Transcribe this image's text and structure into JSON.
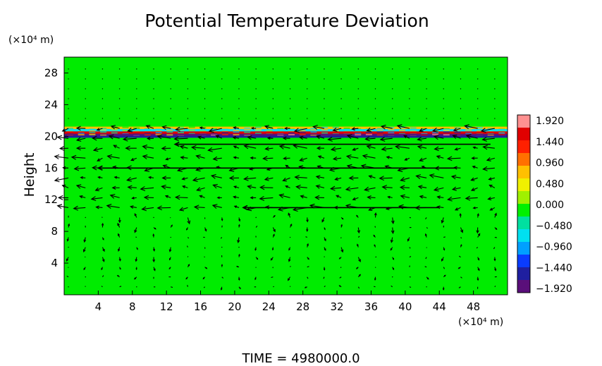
{
  "chart_data": {
    "type": "heatmap",
    "subtype": "filled-contour with wind vectors",
    "title": "Potential Temperature Deviation",
    "xlabel": "",
    "ylabel": "Height",
    "x_unit_label": "(×10⁴ m)",
    "y_unit_label": "(×10⁴ m)",
    "xlim": [
      0,
      52
    ],
    "ylim": [
      0,
      30
    ],
    "x_ticks": [
      4,
      8,
      12,
      16,
      20,
      24,
      28,
      32,
      36,
      40,
      44,
      48
    ],
    "y_ticks": [
      4,
      8,
      12,
      16,
      20,
      24,
      28
    ],
    "background_field_value": 0.0,
    "colorbar": {
      "range": [
        -1.92,
        1.92
      ],
      "tick_labels": [
        "1.920",
        "1.440",
        "0.960",
        "0.480",
        "0.000",
        "−0.480",
        "−0.960",
        "−1.440",
        "−1.920"
      ],
      "colors": [
        "#5a0f7a",
        "#1f1fa0",
        "#0a3cff",
        "#00a0ff",
        "#00e0f0",
        "#00e0a0",
        "#00f000",
        "#a0f000",
        "#f0f000",
        "#ffc000",
        "#ff7000",
        "#ff2000",
        "#e00000",
        "#ff9090"
      ]
    },
    "wave_band": {
      "y_center": 20.2,
      "description_values": [
        {
          "y": 21.0,
          "value": 0.6
        },
        {
          "y": 20.7,
          "value": -0.8
        },
        {
          "y": 20.4,
          "value": 1.5
        },
        {
          "y": 20.1,
          "value": -1.9
        }
      ]
    },
    "vector_jets": [
      {
        "y": 19.0,
        "x_from": 50,
        "x_to": 13,
        "direction": "westward"
      },
      {
        "y": 16.0,
        "x_from": 46,
        "x_to": 4,
        "direction": "westward"
      },
      {
        "y": 11.0,
        "x_from": 44,
        "x_to": 21,
        "direction": "westward"
      }
    ],
    "annotation": "TIME  =  4980000.0"
  },
  "labels": {
    "title": "Potential Temperature Deviation",
    "ylabel": "Height",
    "y_unit": "(×10⁴ m)",
    "x_unit": "(×10⁴ m)",
    "time": "TIME  =  4980000.0"
  }
}
